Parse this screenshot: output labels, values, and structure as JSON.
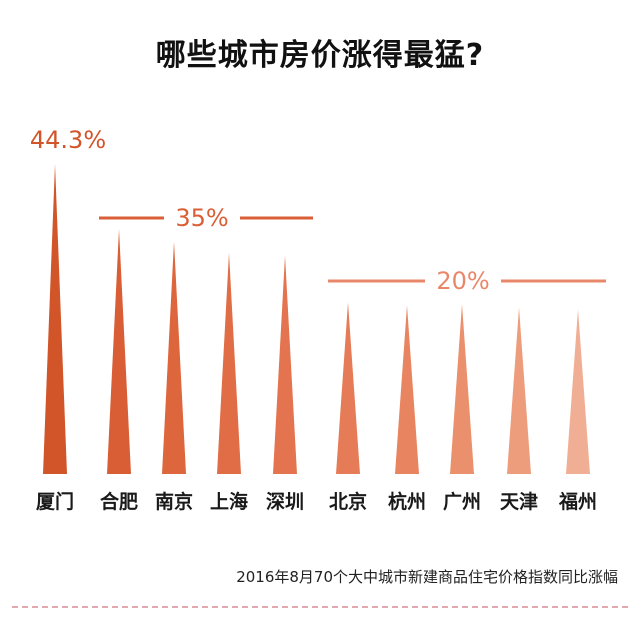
{
  "title": "哪些城市房价涨得最猛?",
  "footnote": "2016年8月70个大中城市新建商品住宅价格指数同比涨幅",
  "chart_data": {
    "type": "bar",
    "categories": [
      "厦门",
      "合肥",
      "南京",
      "上海",
      "深圳",
      "北京",
      "杭州",
      "广州",
      "天津",
      "福州"
    ],
    "values": [
      44.3,
      35,
      33.2,
      31.6,
      31.2,
      24.5,
      24.1,
      24.3,
      23.8,
      23.5
    ],
    "colors": [
      "#d2552a",
      "#d95e35",
      "#dd663d",
      "#e06d45",
      "#e3744f",
      "#e57b57",
      "#e88560",
      "#eb906c",
      "#ee9d7c",
      "#f0ae94"
    ],
    "annotations": [
      {
        "text": "44.3%",
        "value": 44.3,
        "from": 0,
        "to": 0
      },
      {
        "text": "35%",
        "value": 35,
        "from": 1,
        "to": 4
      },
      {
        "text": "20%",
        "value": 20,
        "from": 5,
        "to": 9
      }
    ],
    "ylim": [
      0,
      44.3
    ]
  }
}
